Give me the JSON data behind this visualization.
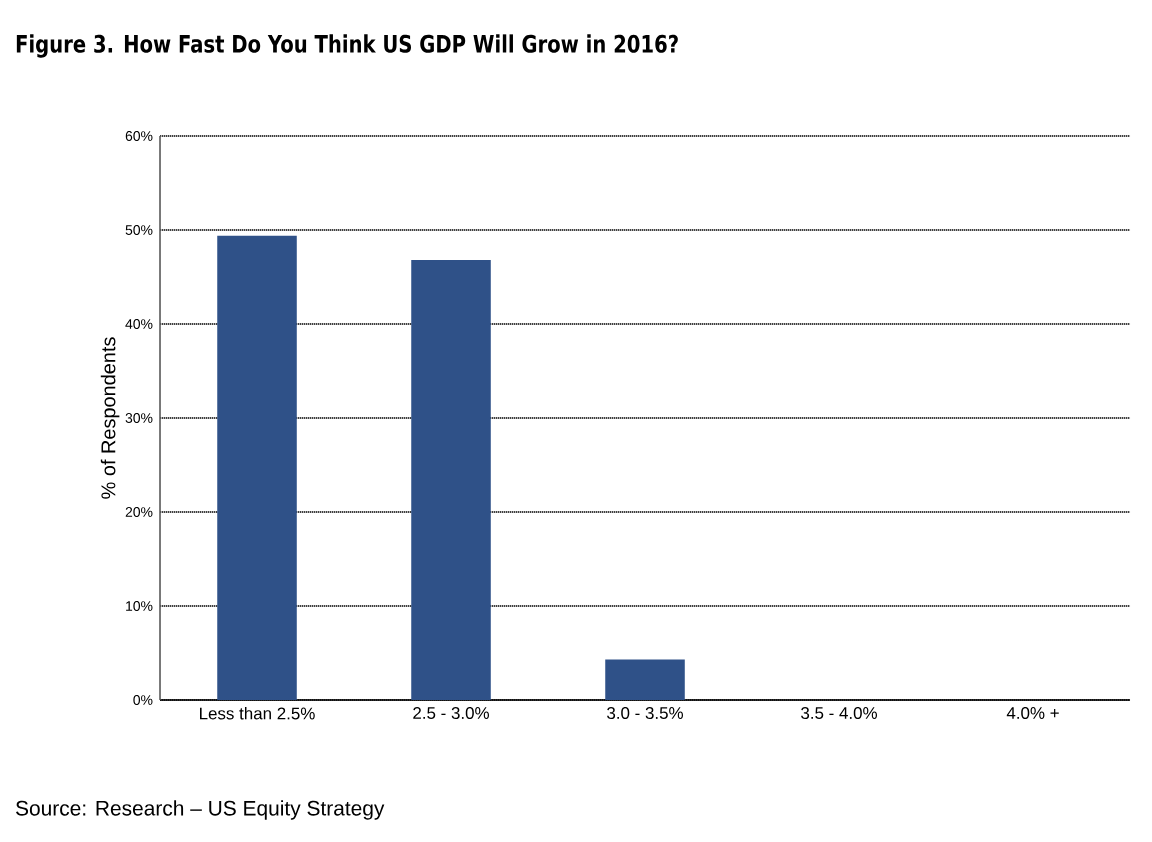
{
  "chart_data": {
    "type": "bar",
    "title": "Figure 3. How Fast Do You Think US GDP Will Grow in 2016?",
    "ylabel": "% of Respondents",
    "categories": [
      "Less than 2.5%",
      "2.5 - 3.0%",
      "3.0 - 3.5%",
      "3.5 - 4.0%",
      "4.0% +"
    ],
    "values": [
      49.4,
      46.8,
      4.3,
      0,
      0
    ],
    "color": "#2f5188",
    "ylim": [
      0,
      60
    ],
    "yticks": [
      {
        "value": 0,
        "label": "0%"
      },
      {
        "value": 10,
        "label": "10%"
      },
      {
        "value": 20,
        "label": "20%"
      },
      {
        "value": 30,
        "label": "30%"
      },
      {
        "value": 40,
        "label": "40%"
      },
      {
        "value": 50,
        "label": "50%"
      },
      {
        "value": 60,
        "label": "60%"
      }
    ],
    "grid": "y",
    "annotations": [
      "Source: Research – US Equity Strategy"
    ]
  }
}
